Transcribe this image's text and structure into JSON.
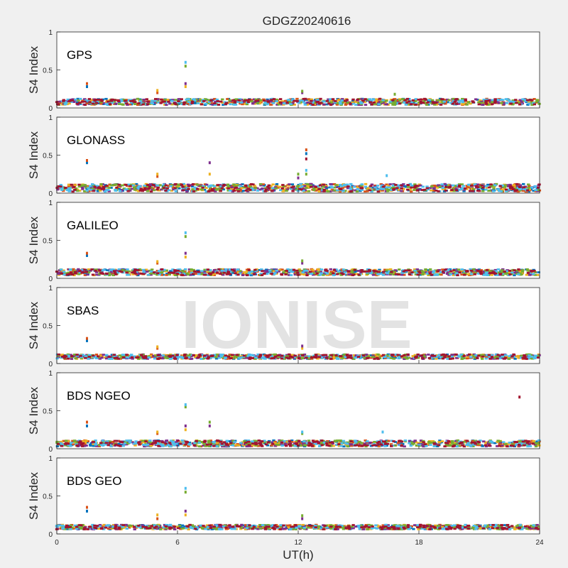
{
  "figure": {
    "title": "GDGZ20240616",
    "watermark": "IONISE",
    "xlabel": "UT(h)",
    "xticks": [
      "0",
      "6",
      "12",
      "18",
      "24"
    ],
    "series_colors": [
      "#0072BD",
      "#D95319",
      "#EDB120",
      "#7E2F8E",
      "#77AC30",
      "#4DBEEE",
      "#A2142F"
    ]
  },
  "chart_data": [
    {
      "type": "scatter",
      "panel": "GPS",
      "ylabel": "S4 Index",
      "yticks": [
        "0",
        "0.5",
        "1"
      ],
      "xlim": [
        0,
        24
      ],
      "ylim": [
        0,
        1
      ],
      "baseline": {
        "level": 0.08,
        "spread": 0.04
      },
      "spikes": [
        {
          "x": 1.5,
          "values": [
            0.28,
            0.32
          ]
        },
        {
          "x": 5.0,
          "values": [
            0.2,
            0.23
          ]
        },
        {
          "x": 6.4,
          "values": [
            0.28,
            0.32,
            0.55,
            0.6
          ]
        },
        {
          "x": 12.2,
          "values": [
            0.2,
            0.22
          ]
        },
        {
          "x": 16.8,
          "values": [
            0.18
          ]
        }
      ]
    },
    {
      "type": "scatter",
      "panel": "GLONASS",
      "ylabel": "S4 Index",
      "yticks": [
        "0",
        "0.5",
        "1"
      ],
      "xlim": [
        0,
        24
      ],
      "ylim": [
        0,
        1
      ],
      "baseline": {
        "level": 0.07,
        "spread": 0.05
      },
      "spikes": [
        {
          "x": 1.5,
          "values": [
            0.4,
            0.43
          ]
        },
        {
          "x": 5.0,
          "values": [
            0.22,
            0.25
          ]
        },
        {
          "x": 7.6,
          "values": [
            0.25,
            0.4
          ]
        },
        {
          "x": 12.0,
          "values": [
            0.2,
            0.25
          ]
        },
        {
          "x": 12.4,
          "values": [
            0.25,
            0.3,
            0.45,
            0.52,
            0.57
          ]
        },
        {
          "x": 16.4,
          "values": [
            0.23
          ]
        }
      ]
    },
    {
      "type": "scatter",
      "panel": "GALILEO",
      "ylabel": "S4 Index",
      "yticks": [
        "0",
        "0.5",
        "1"
      ],
      "xlim": [
        0,
        24
      ],
      "ylim": [
        0,
        1
      ],
      "baseline": {
        "level": 0.08,
        "spread": 0.04
      },
      "spikes": [
        {
          "x": 1.5,
          "values": [
            0.3,
            0.33
          ]
        },
        {
          "x": 5.0,
          "values": [
            0.2,
            0.22
          ]
        },
        {
          "x": 6.4,
          "values": [
            0.28,
            0.33,
            0.55,
            0.6
          ]
        },
        {
          "x": 12.2,
          "values": [
            0.2,
            0.23
          ]
        }
      ]
    },
    {
      "type": "scatter",
      "panel": "SBAS",
      "ylabel": "S4 Index",
      "yticks": [
        "0",
        "0.5",
        "1"
      ],
      "xlim": [
        0,
        24
      ],
      "ylim": [
        0,
        1
      ],
      "baseline": {
        "level": 0.09,
        "spread": 0.03
      },
      "spikes": [
        {
          "x": 1.5,
          "values": [
            0.3,
            0.33
          ]
        },
        {
          "x": 5.0,
          "values": [
            0.2,
            0.22
          ]
        },
        {
          "x": 12.2,
          "values": [
            0.2,
            0.23
          ]
        }
      ]
    },
    {
      "type": "scatter",
      "panel": "BDS NGEO",
      "ylabel": "S4 Index",
      "yticks": [
        "0",
        "0.5",
        "1"
      ],
      "xlim": [
        0,
        24
      ],
      "ylim": [
        0,
        1
      ],
      "baseline": {
        "level": 0.07,
        "spread": 0.04
      },
      "spikes": [
        {
          "x": 1.5,
          "values": [
            0.3,
            0.35
          ]
        },
        {
          "x": 5.0,
          "values": [
            0.2,
            0.22
          ]
        },
        {
          "x": 6.4,
          "values": [
            0.25,
            0.3,
            0.55,
            0.58
          ]
        },
        {
          "x": 7.6,
          "values": [
            0.3,
            0.35
          ]
        },
        {
          "x": 12.2,
          "values": [
            0.2,
            0.22
          ]
        },
        {
          "x": 16.2,
          "values": [
            0.22
          ]
        },
        {
          "x": 23.0,
          "values": [
            0.68
          ]
        }
      ]
    },
    {
      "type": "scatter",
      "panel": "BDS GEO",
      "ylabel": "S4 Index",
      "yticks": [
        "0",
        "0.5",
        "1"
      ],
      "xlim": [
        0,
        24
      ],
      "ylim": [
        0,
        1
      ],
      "baseline": {
        "level": 0.09,
        "spread": 0.03
      },
      "spikes": [
        {
          "x": 1.5,
          "values": [
            0.3,
            0.35
          ]
        },
        {
          "x": 5.0,
          "values": [
            0.2,
            0.25
          ]
        },
        {
          "x": 6.4,
          "values": [
            0.25,
            0.3,
            0.55,
            0.6
          ]
        },
        {
          "x": 12.2,
          "values": [
            0.2,
            0.24
          ]
        }
      ]
    }
  ]
}
